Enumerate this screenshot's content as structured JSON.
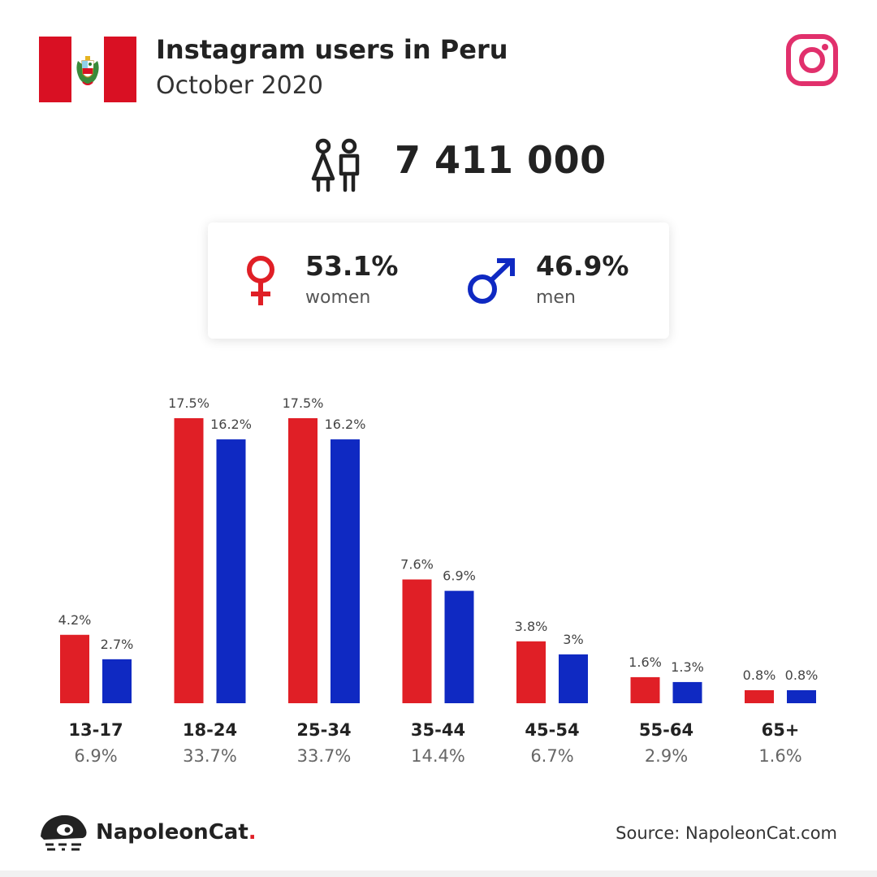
{
  "header": {
    "title": "Instagram users in Peru",
    "subtitle": "October 2020"
  },
  "total_users": "7 411 000",
  "gender": {
    "women_pct": "53.1%",
    "women_label": "women",
    "men_pct": "46.9%",
    "men_label": "men"
  },
  "colors": {
    "women": "#e01f26",
    "men": "#0f29c2",
    "instagram": "#e1306c",
    "flag_red": "#d91023"
  },
  "icons": [
    "peru-flag-icon",
    "instagram-icon",
    "users-icon",
    "female-icon",
    "male-icon",
    "napoleoncat-logo-icon"
  ],
  "chart_data": {
    "type": "bar",
    "categories": [
      "13-17",
      "18-24",
      "25-34",
      "35-44",
      "45-54",
      "55-64",
      "65+"
    ],
    "totals": [
      "6.9%",
      "33.7%",
      "33.7%",
      "14.4%",
      "6.7%",
      "2.9%",
      "1.6%"
    ],
    "series": [
      {
        "name": "women",
        "values": [
          4.2,
          17.5,
          17.5,
          7.6,
          3.8,
          1.6,
          0.8
        ],
        "labels": [
          "4.2%",
          "17.5%",
          "17.5%",
          "7.6%",
          "3.8%",
          "1.6%",
          "0.8%"
        ]
      },
      {
        "name": "men",
        "values": [
          2.7,
          16.2,
          16.2,
          6.9,
          3.0,
          1.3,
          0.8
        ],
        "labels": [
          "2.7%",
          "16.2%",
          "16.2%",
          "6.9%",
          "3%",
          "1.3%",
          "0.8%"
        ]
      }
    ],
    "ylim": [
      0,
      17.5
    ],
    "grid": false
  },
  "footer": {
    "brand": "NapoleonCat",
    "brand_dot": ".",
    "source": "Source: NapoleonCat.com"
  }
}
